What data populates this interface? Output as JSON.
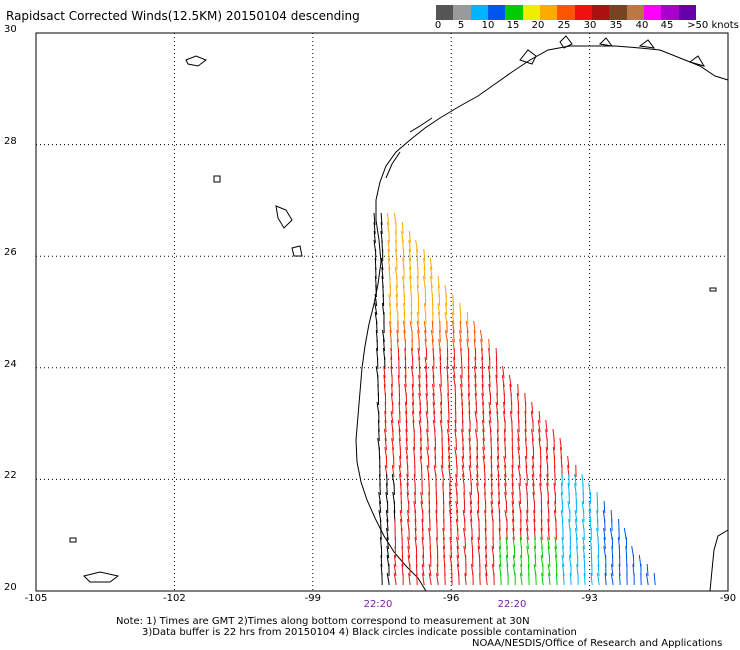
{
  "title": "Rapidsact Corrected Winds(12.5KM) 20150104 descending",
  "colorbar": {
    "colors": [
      "#555555",
      "#9a9a9a",
      "#00b4ff",
      "#0055ee",
      "#00cc00",
      "#eeee00",
      "#ffaa00",
      "#ff5500",
      "#ee1111",
      "#aa1111",
      "#774422",
      "#bb7744",
      "#ff00ff",
      "#aa00cc",
      "#6600aa"
    ],
    "labels": [
      "0",
      "5",
      "10",
      "15",
      "20",
      "25",
      "30",
      "35",
      "40",
      "45",
      ">50 knots"
    ]
  },
  "axes": {
    "lon_ticks": [
      "-105",
      "-102",
      "-99",
      "-96",
      "-93",
      "-90"
    ],
    "lat_ticks": [
      "30",
      "28",
      "26",
      "24",
      "22",
      "20"
    ],
    "lon_range": [
      -105,
      -90
    ],
    "lat_range": [
      20,
      30
    ]
  },
  "time_labels": [
    "22:20",
    "22:20"
  ],
  "notes": [
    "Note: 1) Times are GMT 2)Times along bottom correspond to measurement at 30N",
    "3)Data buffer is 22 hrs from 20150104 4) Black circles indicate possible contamination",
    "NOAA/NESDIS/Office of Research and Applications"
  ],
  "colors": {
    "coast": "#000000",
    "grid": "#000000",
    "wind_low": "#0080ff",
    "wind_mid": "#ee1111",
    "wind_high": "#ffcc00"
  }
}
